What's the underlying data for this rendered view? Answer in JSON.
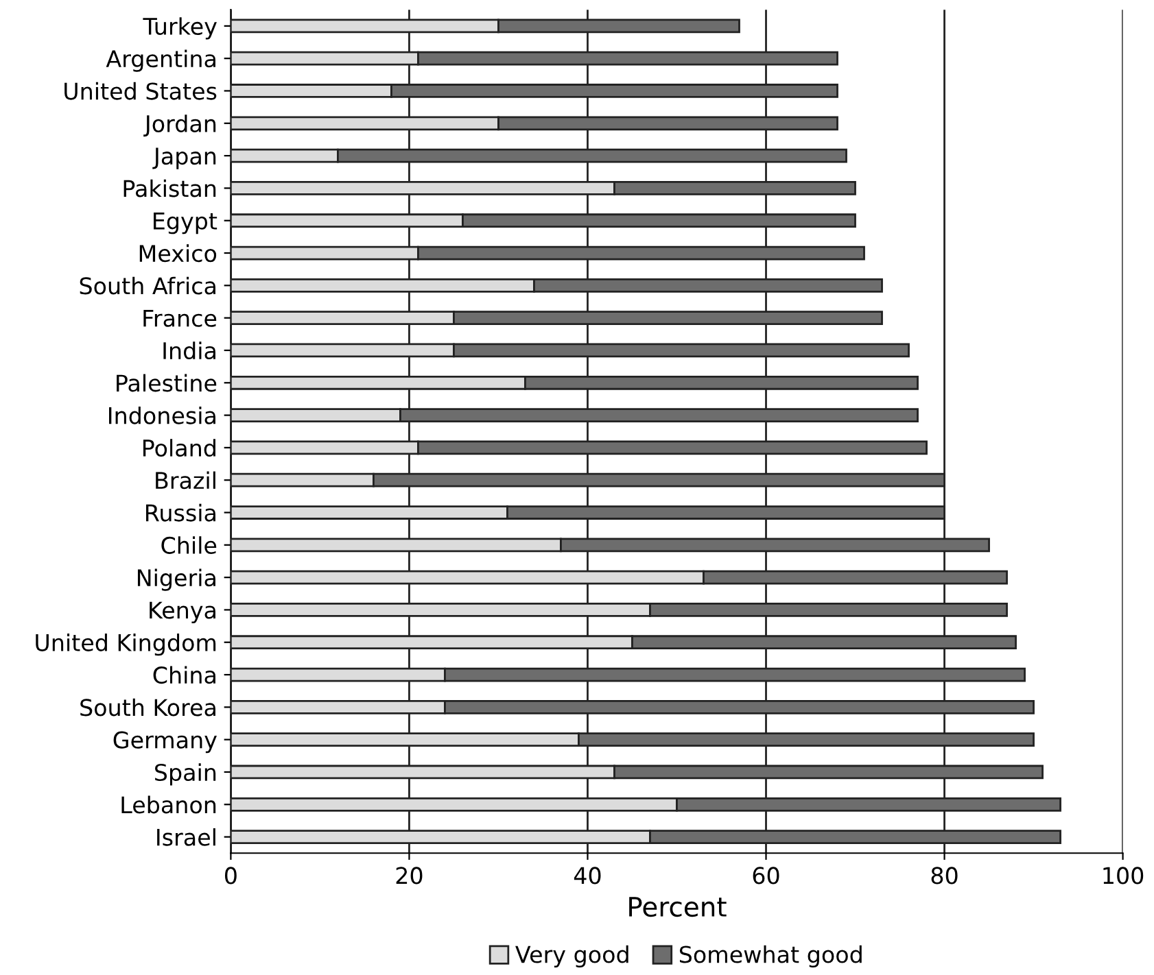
{
  "chart_data": {
    "type": "bar",
    "orientation": "horizontal",
    "stacked": true,
    "categories": [
      "Turkey",
      "Argentina",
      "United States",
      "Jordan",
      "Japan",
      "Pakistan",
      "Egypt",
      "Mexico",
      "South Africa",
      "France",
      "India",
      "Palestine",
      "Indonesia",
      "Poland",
      "Brazil",
      "Russia",
      "Chile",
      "Nigeria",
      "Kenya",
      "United Kingdom",
      "China",
      "South Korea",
      "Germany",
      "Spain",
      "Lebanon",
      "Israel"
    ],
    "series": [
      {
        "name": "Very good",
        "color": "#dcdcdc",
        "values": [
          30,
          21,
          18,
          30,
          12,
          43,
          26,
          21,
          34,
          25,
          25,
          33,
          19,
          21,
          16,
          31,
          37,
          53,
          47,
          45,
          24,
          24,
          39,
          43,
          50,
          47
        ]
      },
      {
        "name": "Somewhat good",
        "color": "#6d6d6d",
        "values": [
          27,
          47,
          50,
          38,
          57,
          27,
          44,
          50,
          39,
          48,
          51,
          44,
          58,
          57,
          64,
          49,
          48,
          34,
          40,
          43,
          65,
          66,
          51,
          48,
          43,
          46
        ]
      }
    ],
    "xlabel": "Percent",
    "xlim": [
      0,
      100
    ],
    "xticks": [
      0,
      20,
      40,
      60,
      80,
      100
    ],
    "grid": "x",
    "legend": "bottom"
  }
}
